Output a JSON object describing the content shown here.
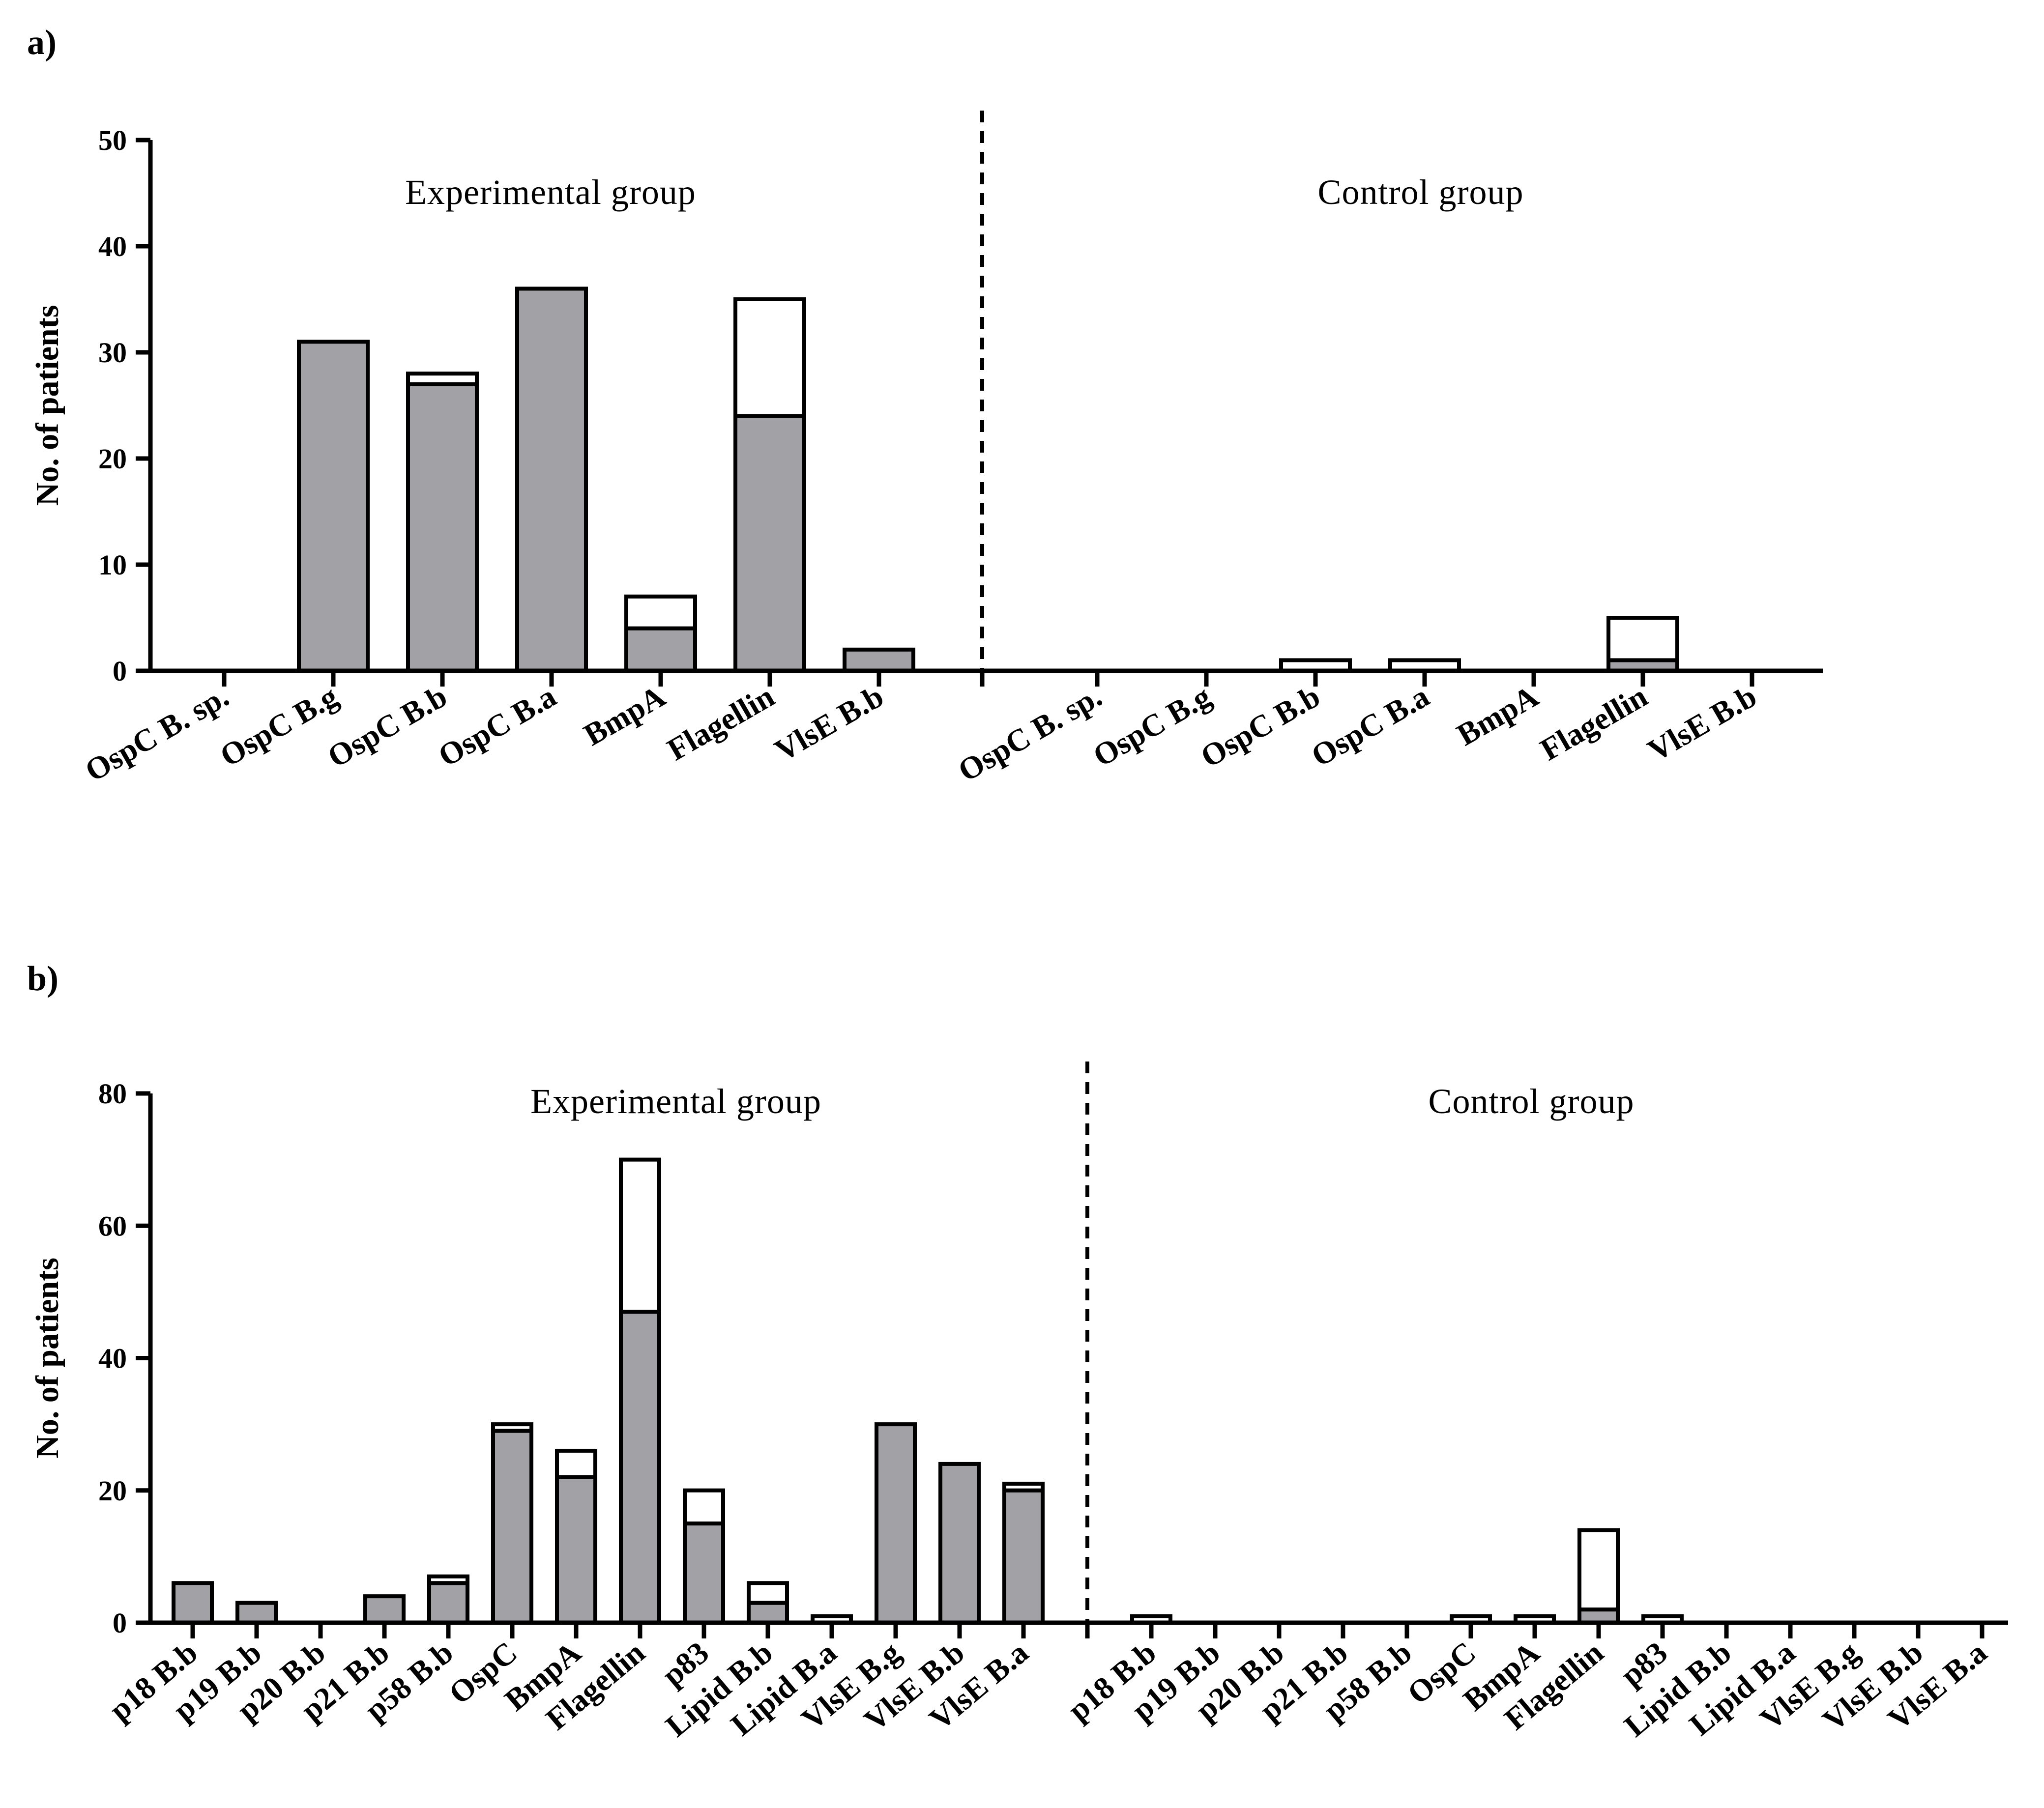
{
  "chart_data": [
    {
      "type": "bar",
      "stacked": true,
      "panel_label": "a)",
      "ylabel": "No. of patients",
      "ylim": [
        0,
        50
      ],
      "yticks": [
        0,
        10,
        20,
        30,
        40,
        50
      ],
      "group_labels": [
        "Experimental group",
        "Control group"
      ],
      "categories": [
        "OspC B. sp.",
        "OspC B.g",
        "OspC B.b",
        "OspC B.a",
        "BmpA",
        "Flagellin",
        "VlsE B.b",
        "OspC B. sp.",
        "OspC B.g",
        "OspC B.b",
        "OspC B.a",
        "BmpA",
        "Flagellin",
        "VlsE B.b"
      ],
      "series": [
        {
          "name": "lower (grey)",
          "color": "#a2a1a6",
          "values": [
            0,
            31,
            27,
            36,
            4,
            24,
            2,
            0,
            0,
            0,
            0,
            0,
            1,
            0
          ]
        },
        {
          "name": "upper (white)",
          "color": "#ffffff",
          "values": [
            0,
            0,
            1,
            0,
            3,
            11,
            0,
            0,
            0,
            1,
            1,
            0,
            4,
            0
          ]
        }
      ]
    },
    {
      "type": "bar",
      "stacked": true,
      "panel_label": "b)",
      "ylabel": "No. of patients",
      "ylim": [
        0,
        80
      ],
      "yticks": [
        0,
        20,
        40,
        60,
        80
      ],
      "group_labels": [
        "Experimental group",
        "Control group"
      ],
      "categories": [
        "p18 B.b",
        "p19 B.b",
        "p20 B.b",
        "p21 B.b",
        "p58 B.b",
        "OspC",
        "BmpA",
        "Flagellin",
        "p83",
        "Lipid B.b",
        "Lipid B.a",
        "VlsE B.g",
        "VlsE B.b",
        "VlsE B.a",
        "p18 B.b",
        "p19 B.b",
        "p20 B.b",
        "p21 B.b",
        "p58 B.b",
        "OspC",
        "BmpA",
        "Flagellin",
        "p83",
        "Lipid B.b",
        "Lipid B.a",
        "VlsE B.g",
        "VlsE B.b",
        "VlsE B.a"
      ],
      "series": [
        {
          "name": "lower (grey)",
          "color": "#a2a1a6",
          "values": [
            6,
            3,
            0,
            4,
            6,
            29,
            22,
            47,
            15,
            3,
            0,
            30,
            24,
            20,
            0,
            0,
            0,
            0,
            0,
            0,
            0,
            2,
            0,
            0,
            0,
            0,
            0,
            0
          ]
        },
        {
          "name": "upper (white)",
          "color": "#ffffff",
          "values": [
            0,
            0,
            0,
            0,
            1,
            1,
            4,
            23,
            5,
            3,
            1,
            0,
            0,
            1,
            1,
            0,
            0,
            0,
            0,
            1,
            1,
            12,
            1,
            0,
            0,
            0,
            0,
            0
          ]
        }
      ]
    }
  ]
}
